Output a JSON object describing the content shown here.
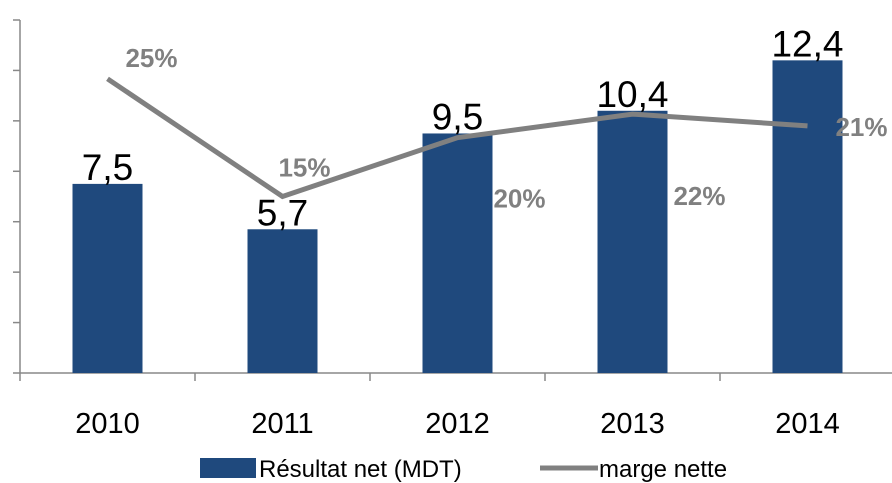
{
  "chart_data": {
    "type": "bar",
    "categories": [
      "2010",
      "2011",
      "2012",
      "2013",
      "2014"
    ],
    "ylim": [
      0,
      14
    ],
    "yticks": [
      0,
      2,
      4,
      6,
      8,
      10,
      12,
      14
    ],
    "y2lim": [
      0,
      30
    ],
    "series": [
      {
        "name": "Résultat net (MDT)",
        "type": "bar",
        "color": "#1f497d",
        "values": [
          7.5,
          5.7,
          9.5,
          10.4,
          12.4
        ],
        "value_labels": [
          "7,5",
          "5,7",
          "9,5",
          "10,4",
          "12,4"
        ]
      },
      {
        "name": "marge nette",
        "type": "line",
        "axis": "y2",
        "color": "#808080",
        "values": [
          25,
          15,
          20,
          22,
          21
        ],
        "value_labels": [
          "25%",
          "15%",
          "20%",
          "22%",
          "21%"
        ]
      }
    ]
  }
}
